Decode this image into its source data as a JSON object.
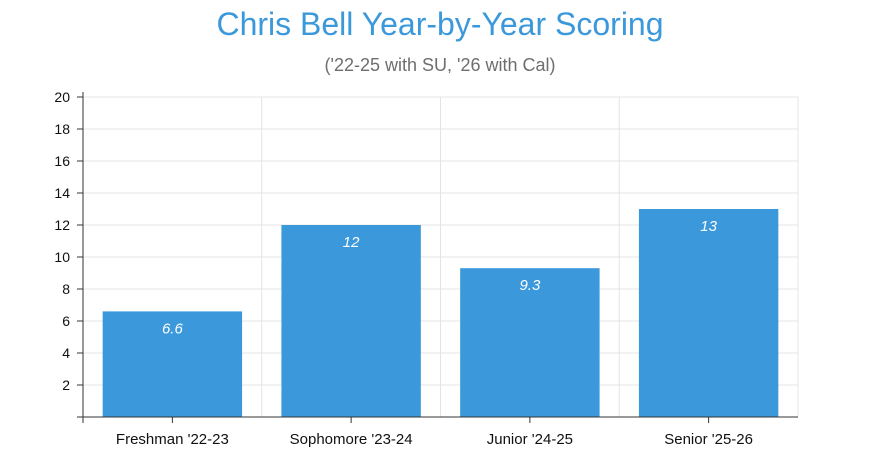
{
  "chart_data": {
    "type": "bar",
    "title": "Chris Bell Year-by-Year Scoring",
    "subtitle": "('22-25 with SU, '26 with Cal)",
    "categories": [
      "Freshman '22-23",
      "Sophomore '23-24",
      "Junior '24-25",
      "Senior '25-26"
    ],
    "values": [
      6.6,
      12,
      9.3,
      13
    ],
    "value_labels": [
      "6.6",
      "12",
      "9.3",
      "13"
    ],
    "ylim": [
      0,
      20
    ],
    "yticks": [
      2,
      4,
      6,
      8,
      10,
      12,
      14,
      16,
      18,
      20
    ],
    "xlabel": "",
    "ylabel": "",
    "grid": true,
    "bar_color": "#3a98db"
  }
}
